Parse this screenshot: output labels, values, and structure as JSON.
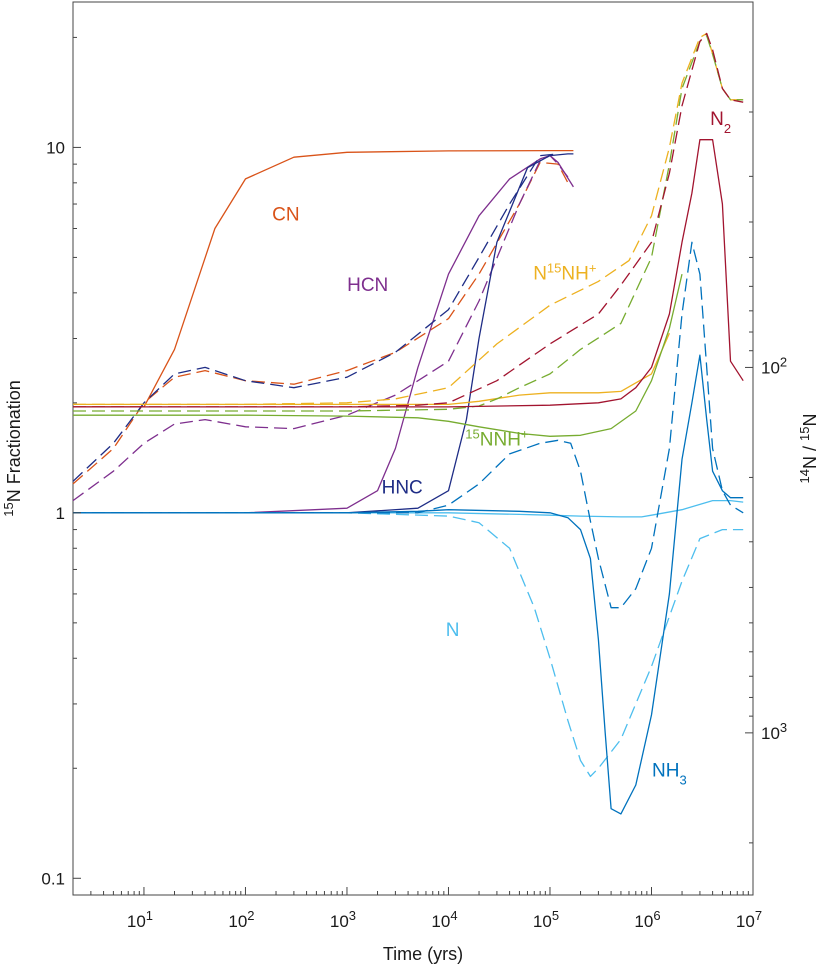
{
  "chart_data": {
    "type": "line",
    "title": "",
    "xlabel": "Time (yrs)",
    "ylabel": {
      "sup": "15",
      "text": "N Fractionation"
    },
    "ylabel_right": {
      "sup1": "14",
      "mid": "N / ",
      "sup2": "15",
      "text": "N"
    },
    "xscale": "log",
    "yscale": "log",
    "xlim": [
      2,
      10000000
    ],
    "ylim": [
      0.09,
      25
    ],
    "x_ticks": [
      {
        "value": 10,
        "base": "10",
        "exp": "1"
      },
      {
        "value": 100,
        "base": "10",
        "exp": "2"
      },
      {
        "value": 1000,
        "base": "10",
        "exp": "3"
      },
      {
        "value": 10000,
        "base": "10",
        "exp": "4"
      },
      {
        "value": 100000,
        "base": "10",
        "exp": "5"
      },
      {
        "value": 1000000,
        "base": "10",
        "exp": "6"
      },
      {
        "value": 10000000,
        "base": "10",
        "exp": "7"
      }
    ],
    "y_ticks": [
      {
        "value": 0.1,
        "label": "0.1"
      },
      {
        "value": 1,
        "label": "1"
      },
      {
        "value": 10,
        "label": "10"
      }
    ],
    "right_ticks": [
      {
        "value": 2.5,
        "base": "10",
        "exp": "2"
      },
      {
        "value": 0.25,
        "base": "10",
        "exp": "3"
      }
    ],
    "right_axis_note": "14N/15N = 250 / fractionation",
    "grid": false,
    "legend": "none (inline labels)",
    "series": [
      {
        "name": "CN",
        "color": "#d95319",
        "dash": false,
        "x": [
          2,
          5,
          10,
          20,
          50,
          100,
          300,
          1000,
          10000,
          100000,
          170000
        ],
        "y": [
          1.95,
          1.95,
          1.95,
          2.8,
          6.0,
          8.2,
          9.4,
          9.7,
          9.78,
          9.8,
          9.8
        ]
      },
      {
        "name": "CN",
        "color": "#d95319",
        "dash": true,
        "x": [
          2,
          5,
          10,
          20,
          40,
          100,
          300,
          1000,
          3000,
          10000,
          20000,
          50000,
          80000,
          120000,
          150000
        ],
        "y": [
          1.2,
          1.5,
          2.0,
          2.35,
          2.45,
          2.3,
          2.25,
          2.45,
          2.75,
          3.4,
          4.5,
          7.0,
          9.1,
          9.0,
          8.0
        ]
      },
      {
        "name": "HCN",
        "color": "#7e2f8e",
        "dash": false,
        "x": [
          2,
          10,
          100,
          1000,
          2000,
          3000,
          5000,
          10000,
          20000,
          40000,
          80000,
          100000,
          120000,
          170000
        ],
        "y": [
          1.0,
          1.0,
          1.0,
          1.03,
          1.15,
          1.5,
          2.5,
          4.5,
          6.5,
          8.2,
          9.3,
          9.5,
          9.1,
          7.8
        ]
      },
      {
        "name": "HCN",
        "color": "#7e2f8e",
        "dash": true,
        "x": [
          2,
          5,
          10,
          20,
          40,
          100,
          300,
          1000,
          3000,
          10000,
          20000,
          50000,
          80000,
          100000,
          120000,
          150000
        ],
        "y": [
          1.08,
          1.3,
          1.55,
          1.75,
          1.8,
          1.72,
          1.7,
          1.85,
          2.1,
          2.6,
          3.8,
          7.0,
          9.2,
          9.5,
          9.0,
          8.3
        ]
      },
      {
        "name": "HNC",
        "color": "#1f2d86",
        "dash": false,
        "x": [
          2,
          100,
          1000,
          5000,
          10000,
          15000,
          20000,
          30000,
          60000,
          100000,
          150000,
          170000
        ],
        "y": [
          1.0,
          1.0,
          1.0,
          1.03,
          1.15,
          1.8,
          3.0,
          5.5,
          8.8,
          9.5,
          9.6,
          9.6
        ]
      },
      {
        "name": "HNC",
        "color": "#1f2d86",
        "dash": true,
        "x": [
          2,
          5,
          10,
          20,
          40,
          100,
          300,
          1000,
          3000,
          10000,
          20000,
          40000,
          80000,
          120000
        ],
        "y": [
          1.22,
          1.55,
          2.0,
          2.4,
          2.5,
          2.3,
          2.2,
          2.35,
          2.75,
          3.6,
          5.0,
          7.0,
          9.5,
          9.6
        ]
      },
      {
        "name": "N15NH+",
        "color": "#edb120",
        "dash": false,
        "x": [
          2,
          100,
          1000,
          10000,
          20000,
          50000,
          100000,
          300000,
          500000,
          1000000,
          1500000
        ],
        "y": [
          1.98,
          1.98,
          1.98,
          1.98,
          2.02,
          2.1,
          2.13,
          2.13,
          2.15,
          2.4,
          3.1
        ]
      },
      {
        "name": "N15NH+",
        "color": "#edb120",
        "dash": true,
        "x": [
          2,
          100,
          1000,
          3000,
          10000,
          30000,
          100000,
          300000,
          600000,
          1000000,
          1500000,
          2000000,
          3000000,
          3500000,
          4000000,
          5000000,
          6000000,
          8000000
        ],
        "y": [
          1.98,
          1.98,
          2.0,
          2.05,
          2.2,
          2.9,
          3.7,
          4.3,
          4.9,
          6.5,
          10.0,
          15.0,
          20.0,
          20.5,
          18.0,
          14.5,
          13.5,
          13.5
        ]
      },
      {
        "name": "15NNH+",
        "color": "#77ac30",
        "dash": false,
        "x": [
          2,
          100,
          1000,
          5000,
          10000,
          20000,
          50000,
          100000,
          200000,
          400000,
          700000,
          1000000,
          1500000,
          2000000
        ],
        "y": [
          1.85,
          1.85,
          1.84,
          1.82,
          1.78,
          1.72,
          1.65,
          1.62,
          1.63,
          1.7,
          1.9,
          2.3,
          3.2,
          4.5
        ]
      },
      {
        "name": "15NNH+",
        "color": "#77ac30",
        "dash": true,
        "x": [
          2,
          100,
          1000,
          10000,
          20000,
          30000,
          50000,
          100000,
          200000,
          500000,
          1000000,
          1500000,
          2000000,
          3000000,
          3500000,
          4000000,
          5000000,
          6000000,
          8000000
        ],
        "y": [
          1.9,
          1.9,
          1.9,
          1.92,
          1.96,
          2.05,
          2.2,
          2.4,
          2.8,
          3.3,
          5.0,
          9.0,
          14.5,
          19.5,
          20.2,
          18.0,
          14.5,
          13.5,
          13.5
        ]
      },
      {
        "name": "N2",
        "color": "#a2142f",
        "dash": false,
        "x": [
          2,
          100,
          1000,
          10000,
          100000,
          300000,
          500000,
          700000,
          1000000,
          1500000,
          2000000,
          2500000,
          3000000,
          4000000,
          5000000,
          6000000,
          8000000
        ],
        "y": [
          1.95,
          1.95,
          1.95,
          1.95,
          1.97,
          2.0,
          2.05,
          2.2,
          2.5,
          3.5,
          5.5,
          7.5,
          10.5,
          10.5,
          7.0,
          2.6,
          2.3
        ]
      },
      {
        "name": "N2",
        "color": "#a2142f",
        "dash": true,
        "x": [
          2,
          100,
          1000,
          5000,
          10000,
          30000,
          100000,
          300000,
          500000,
          1000000,
          1500000,
          2000000,
          3000000,
          3500000,
          4000000,
          5000000,
          6000000,
          8000000
        ],
        "y": [
          1.95,
          1.95,
          1.95,
          1.97,
          2.0,
          2.3,
          2.9,
          3.5,
          4.2,
          5.5,
          8.5,
          13.0,
          19.5,
          20.5,
          18.5,
          14.5,
          13.5,
          13.3
        ]
      },
      {
        "name": "N",
        "color": "#4dbeee",
        "dash": false,
        "x": [
          2,
          100,
          1000,
          10000,
          50000,
          100000,
          200000,
          500000,
          800000,
          1000000,
          2000000,
          4000000,
          6000000,
          8000000
        ],
        "y": [
          1.0,
          1.0,
          1.0,
          1.0,
          0.99,
          0.985,
          0.98,
          0.975,
          0.975,
          0.985,
          1.02,
          1.08,
          1.08,
          1.07
        ]
      },
      {
        "name": "N",
        "color": "#4dbeee",
        "dash": true,
        "x": [
          2,
          1000,
          10000,
          20000,
          40000,
          70000,
          100000,
          150000,
          200000,
          250000,
          300000,
          500000,
          1000000,
          2000000,
          3000000,
          5000000,
          8000000
        ],
        "y": [
          1.0,
          1.0,
          0.98,
          0.94,
          0.8,
          0.55,
          0.4,
          0.27,
          0.21,
          0.19,
          0.2,
          0.24,
          0.38,
          0.65,
          0.85,
          0.9,
          0.9
        ]
      },
      {
        "name": "NH3",
        "color": "#0072bd",
        "dash": false,
        "x": [
          2,
          1000,
          5000,
          10000,
          50000,
          100000,
          150000,
          200000,
          250000,
          300000,
          350000,
          400000,
          500000,
          700000,
          1000000,
          1500000,
          2000000,
          2500000,
          3000000,
          3500000,
          4000000,
          5000000,
          6000000,
          8000000
        ],
        "y": [
          1.0,
          1.0,
          1.01,
          1.02,
          1.01,
          1.0,
          0.97,
          0.9,
          0.75,
          0.45,
          0.25,
          0.155,
          0.15,
          0.18,
          0.28,
          0.6,
          1.4,
          2.0,
          2.7,
          1.8,
          1.3,
          1.15,
          1.1,
          1.1
        ]
      },
      {
        "name": "NH3",
        "color": "#0072bd",
        "dash": true,
        "x": [
          2,
          1000,
          5000,
          10000,
          20000,
          40000,
          80000,
          120000,
          160000,
          200000,
          250000,
          300000,
          400000,
          500000,
          700000,
          1000000,
          1500000,
          2000000,
          2500000,
          3000000,
          3500000,
          4000000,
          5000000,
          6000000,
          8000000
        ],
        "y": [
          1.0,
          1.0,
          1.0,
          1.05,
          1.2,
          1.45,
          1.55,
          1.58,
          1.55,
          1.3,
          0.95,
          0.75,
          0.55,
          0.55,
          0.62,
          0.8,
          1.5,
          3.5,
          5.5,
          4.5,
          2.5,
          1.5,
          1.15,
          1.05,
          1.0
        ]
      }
    ],
    "annotations": [
      {
        "name": "label-cn",
        "color": "#d95319",
        "x": 250,
        "y": 6.3,
        "parts": [
          [
            "CN",
            ""
          ]
        ]
      },
      {
        "name": "label-hcn",
        "color": "#7e2f8e",
        "x": 1600,
        "y": 4.05,
        "parts": [
          [
            "HCN",
            ""
          ]
        ]
      },
      {
        "name": "label-n15nh",
        "color": "#edb120",
        "x": 140000,
        "y": 4.35,
        "parts": [
          [
            "N",
            ""
          ],
          [
            "15",
            "sup"
          ],
          [
            "NH",
            ""
          ],
          [
            "+",
            "sup"
          ]
        ]
      },
      {
        "name": "label-n2",
        "color": "#a2142f",
        "x": 4800000,
        "y": 11.5,
        "parts": [
          [
            "N",
            ""
          ],
          [
            "2",
            "sub"
          ]
        ]
      },
      {
        "name": "label-15nnh",
        "color": "#77ac30",
        "x": 30000,
        "y": 1.53,
        "parts": [
          [
            "15",
            "sup"
          ],
          [
            "NNH",
            ""
          ],
          [
            "+",
            "sup"
          ]
        ]
      },
      {
        "name": "label-hnc",
        "color": "#1f2d86",
        "x": 3500,
        "y": 1.13,
        "parts": [
          [
            "HNC",
            ""
          ]
        ]
      },
      {
        "name": "label-n",
        "color": "#4dbeee",
        "x": 11000,
        "y": 0.46,
        "parts": [
          [
            "N",
            ""
          ]
        ]
      },
      {
        "name": "label-nh3",
        "color": "#0072bd",
        "x": 1500000,
        "y": 0.19,
        "parts": [
          [
            "NH",
            ""
          ],
          [
            "3",
            "sub"
          ]
        ]
      }
    ]
  }
}
